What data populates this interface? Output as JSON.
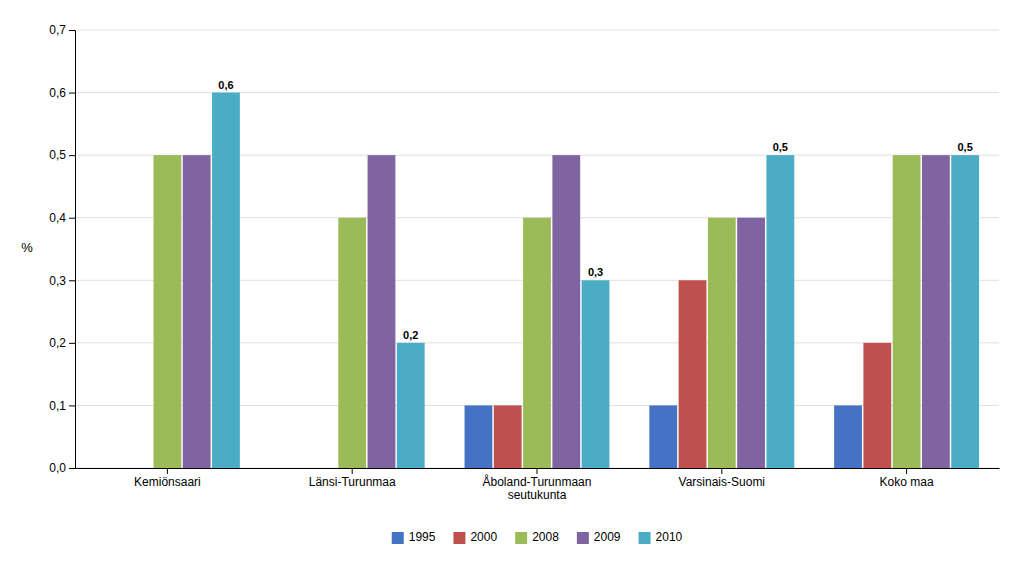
{
  "chart_data": {
    "type": "bar",
    "categories": [
      "Kemiönsaari",
      "Länsi-Turunmaa",
      "Åboland-Turunmaan\nseutukunta",
      "Varsinais-Suomi",
      "Koko maa"
    ],
    "series": [
      {
        "name": "1995",
        "color": "#4472C4",
        "values": [
          0.0,
          0.0,
          0.1,
          0.1,
          0.1
        ]
      },
      {
        "name": "2000",
        "color": "#C0504D",
        "values": [
          0.0,
          0.0,
          0.1,
          0.3,
          0.2
        ]
      },
      {
        "name": "2008",
        "color": "#9BBB59",
        "values": [
          0.5,
          0.4,
          0.4,
          0.4,
          0.5
        ]
      },
      {
        "name": "2009",
        "color": "#8064A2",
        "values": [
          0.5,
          0.5,
          0.5,
          0.4,
          0.5
        ]
      },
      {
        "name": "2010",
        "color": "#4BACC6",
        "values": [
          0.6,
          0.2,
          0.3,
          0.5,
          0.5
        ],
        "data_labels": true,
        "value_labels": [
          "0,6",
          "0,2",
          "0,3",
          "0,5",
          "0,5"
        ]
      }
    ],
    "ylabel": "%",
    "ylim": [
      0,
      0.7
    ],
    "yticks": [
      {
        "value": 0,
        "label": "0,0"
      },
      {
        "value": 0.1,
        "label": "0,1"
      },
      {
        "value": 0.2,
        "label": "0,2"
      },
      {
        "value": 0.3,
        "label": "0,3"
      },
      {
        "value": 0.4,
        "label": "0,4"
      },
      {
        "value": 0.5,
        "label": "0,5"
      },
      {
        "value": 0.6,
        "label": "0,6"
      },
      {
        "value": 0.7,
        "label": "0,7"
      }
    ],
    "grid": true,
    "legend": "bottom"
  }
}
